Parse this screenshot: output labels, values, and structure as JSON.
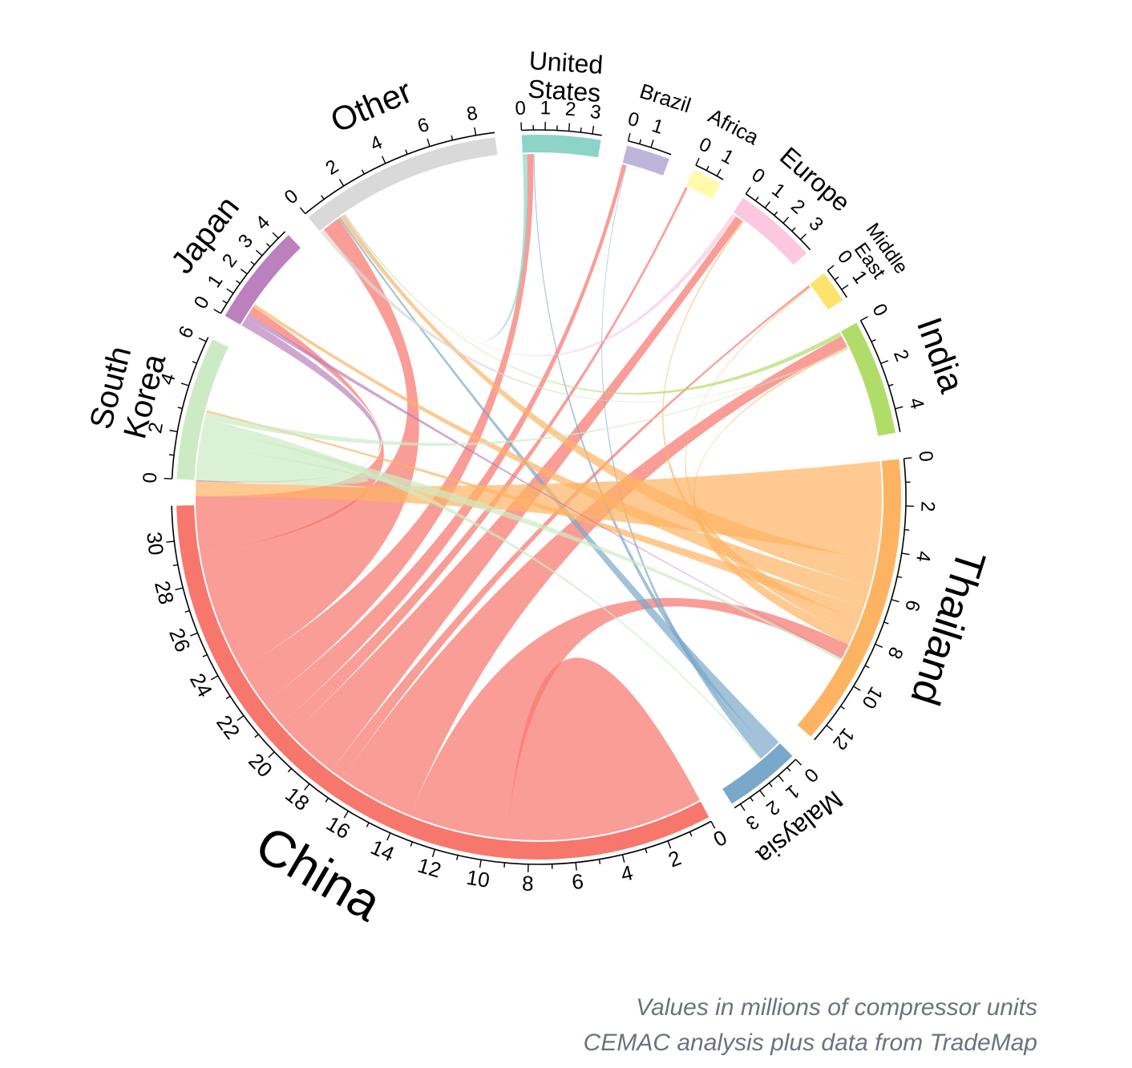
{
  "chart_data": {
    "type": "chord",
    "unit_note": "Values in millions of compressor units",
    "source_note": "CEMAC analysis plus data from TradeMap",
    "regions": [
      {
        "name": "China",
        "total": 31.5,
        "ticks": [
          0,
          2,
          4,
          6,
          8,
          10,
          12,
          14,
          16,
          18,
          20,
          22,
          24,
          26,
          28,
          30
        ],
        "color": "#f8776d"
      },
      {
        "name": "Malaysia",
        "total": 3.3,
        "ticks": [
          0,
          1,
          2,
          3
        ],
        "color": "#7aa8cb"
      },
      {
        "name": "Thailand",
        "total": 12.8,
        "ticks": [
          0,
          2,
          4,
          6,
          8,
          10,
          12
        ],
        "color": "#fdb462"
      },
      {
        "name": "India",
        "total": 5.0,
        "ticks": [
          0,
          2,
          4
        ],
        "color": "#b2dc6a"
      },
      {
        "name": "Middle East",
        "total": 1.4,
        "ticks": [
          0,
          1
        ],
        "color": "#fde26c"
      },
      {
        "name": "Europe",
        "total": 3.6,
        "ticks": [
          0,
          1,
          2,
          3
        ],
        "color": "#fcc8e0"
      },
      {
        "name": "Africa",
        "total": 1.3,
        "ticks": [
          0,
          1
        ],
        "color": "#fffbaa"
      },
      {
        "name": "Brazil",
        "total": 1.9,
        "ticks": [
          0,
          1
        ],
        "color": "#beb6da"
      },
      {
        "name": "United States",
        "total": 3.4,
        "ticks": [
          0,
          1,
          2,
          3
        ],
        "color": "#8dd3c7"
      },
      {
        "name": "Other",
        "total": 8.8,
        "ticks": [
          0,
          2,
          4,
          6,
          8
        ],
        "color": "#d9d9d9"
      },
      {
        "name": "Japan",
        "total": 4.4,
        "ticks": [
          0,
          1,
          2,
          3,
          4
        ],
        "color": "#bb80bd"
      },
      {
        "name": "South Korea",
        "total": 6.2,
        "ticks": [
          0,
          2,
          4,
          6
        ],
        "color": "#ccebc5"
      }
    ],
    "flows": [
      {
        "from": "China",
        "to": "China",
        "value": 9.0
      },
      {
        "from": "China",
        "to": "Thailand",
        "value": 4.5
      },
      {
        "from": "China",
        "to": "India",
        "value": 3.5
      },
      {
        "from": "China",
        "to": "Middle East",
        "value": 0.6
      },
      {
        "from": "China",
        "to": "Europe",
        "value": 2.4
      },
      {
        "from": "China",
        "to": "Africa",
        "value": 0.7
      },
      {
        "from": "China",
        "to": "Brazil",
        "value": 1.2
      },
      {
        "from": "China",
        "to": "United States",
        "value": 1.9
      },
      {
        "from": "China",
        "to": "Other",
        "value": 5.5
      },
      {
        "from": "China",
        "to": "Japan",
        "value": 2.6
      },
      {
        "from": "Malaysia",
        "to": "Other",
        "value": 0.6
      },
      {
        "from": "Malaysia",
        "to": "United States",
        "value": 0.3
      },
      {
        "from": "Malaysia",
        "to": "Brazil",
        "value": 0.2
      },
      {
        "from": "Thailand",
        "to": "China",
        "value": 4.5
      },
      {
        "from": "Thailand",
        "to": "Other",
        "value": 1.2
      },
      {
        "from": "Thailand",
        "to": "Japan",
        "value": 1.0
      },
      {
        "from": "Thailand",
        "to": "South Korea",
        "value": 0.6
      },
      {
        "from": "Thailand",
        "to": "Middle East",
        "value": 0.3
      },
      {
        "from": "Thailand",
        "to": "Europe",
        "value": 0.4
      },
      {
        "from": "Thailand",
        "to": "India",
        "value": 0.5
      },
      {
        "from": "Japan",
        "to": "China",
        "value": 0.4
      },
      {
        "from": "Japan",
        "to": "Thailand",
        "value": 0.2
      },
      {
        "from": "South Korea",
        "to": "China",
        "value": 1.6
      },
      {
        "from": "South Korea",
        "to": "Thailand",
        "value": 0.8
      },
      {
        "from": "South Korea",
        "to": "Malaysia",
        "value": 0.4
      },
      {
        "from": "South Korea",
        "to": "India",
        "value": 0.3
      },
      {
        "from": "United States",
        "to": "Other",
        "value": 0.2
      },
      {
        "from": "Other",
        "to": "India",
        "value": 0.2
      },
      {
        "from": "Europe",
        "to": "Other",
        "value": 0.2
      },
      {
        "from": "India",
        "to": "Other",
        "value": 0.2
      }
    ]
  }
}
